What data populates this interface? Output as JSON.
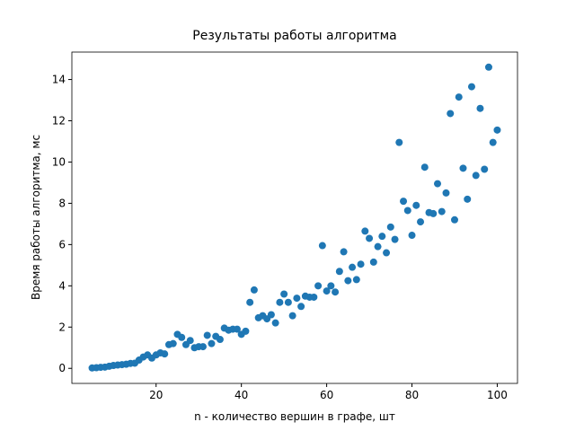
{
  "chart_data": {
    "type": "scatter",
    "title": "Результаты работы алгоритма",
    "x_label": "n - количество вершин в графе, шт",
    "y_label": "Время работы алгоритма, мс",
    "color": "#1f77b4",
    "xlim": [
      0.25,
      104.75
    ],
    "ylim": [
      -0.73,
      15.33
    ],
    "xticks": [
      20,
      40,
      60,
      80,
      100
    ],
    "yticks": [
      0,
      2,
      4,
      6,
      8,
      10,
      12,
      14
    ],
    "x": [
      5,
      6,
      7,
      8,
      9,
      10,
      11,
      12,
      13,
      14,
      15,
      16,
      17,
      18,
      19,
      20,
      21,
      22,
      23,
      24,
      25,
      26,
      27,
      28,
      29,
      30,
      31,
      32,
      33,
      34,
      35,
      36,
      37,
      38,
      39,
      40,
      41,
      42,
      43,
      44,
      45,
      46,
      47,
      48,
      49,
      50,
      51,
      52,
      53,
      54,
      55,
      56,
      57,
      58,
      59,
      60,
      61,
      62,
      63,
      64,
      65,
      66,
      67,
      68,
      69,
      70,
      71,
      72,
      73,
      74,
      75,
      76,
      77,
      78,
      79,
      80,
      81,
      82,
      83,
      84,
      85,
      86,
      87,
      88,
      89,
      90,
      91,
      92,
      93,
      94,
      95,
      96,
      97,
      98,
      99,
      100
    ],
    "values": [
      0.02,
      0.03,
      0.05,
      0.06,
      0.1,
      0.14,
      0.16,
      0.18,
      0.2,
      0.24,
      0.25,
      0.4,
      0.55,
      0.65,
      0.5,
      0.65,
      0.75,
      0.7,
      1.15,
      1.2,
      1.65,
      1.5,
      1.15,
      1.35,
      1.0,
      1.05,
      1.05,
      1.6,
      1.2,
      1.55,
      1.4,
      1.95,
      1.85,
      1.9,
      1.9,
      1.65,
      1.8,
      3.2,
      3.8,
      2.45,
      2.55,
      2.4,
      2.6,
      2.2,
      3.2,
      3.6,
      3.2,
      2.55,
      3.4,
      3.0,
      3.5,
      3.45,
      3.45,
      4.0,
      5.95,
      3.75,
      4.0,
      3.7,
      4.7,
      5.65,
      4.25,
      4.9,
      4.3,
      5.05,
      6.65,
      6.3,
      5.15,
      5.9,
      6.4,
      5.6,
      6.85,
      6.25,
      10.95,
      8.1,
      7.65,
      6.45,
      7.9,
      7.1,
      9.75,
      7.55,
      7.5,
      8.95,
      7.6,
      8.5,
      12.35,
      7.2,
      13.15,
      9.7,
      8.2,
      13.65,
      9.35,
      12.6,
      9.65,
      14.6,
      10.95,
      11.55
    ]
  }
}
